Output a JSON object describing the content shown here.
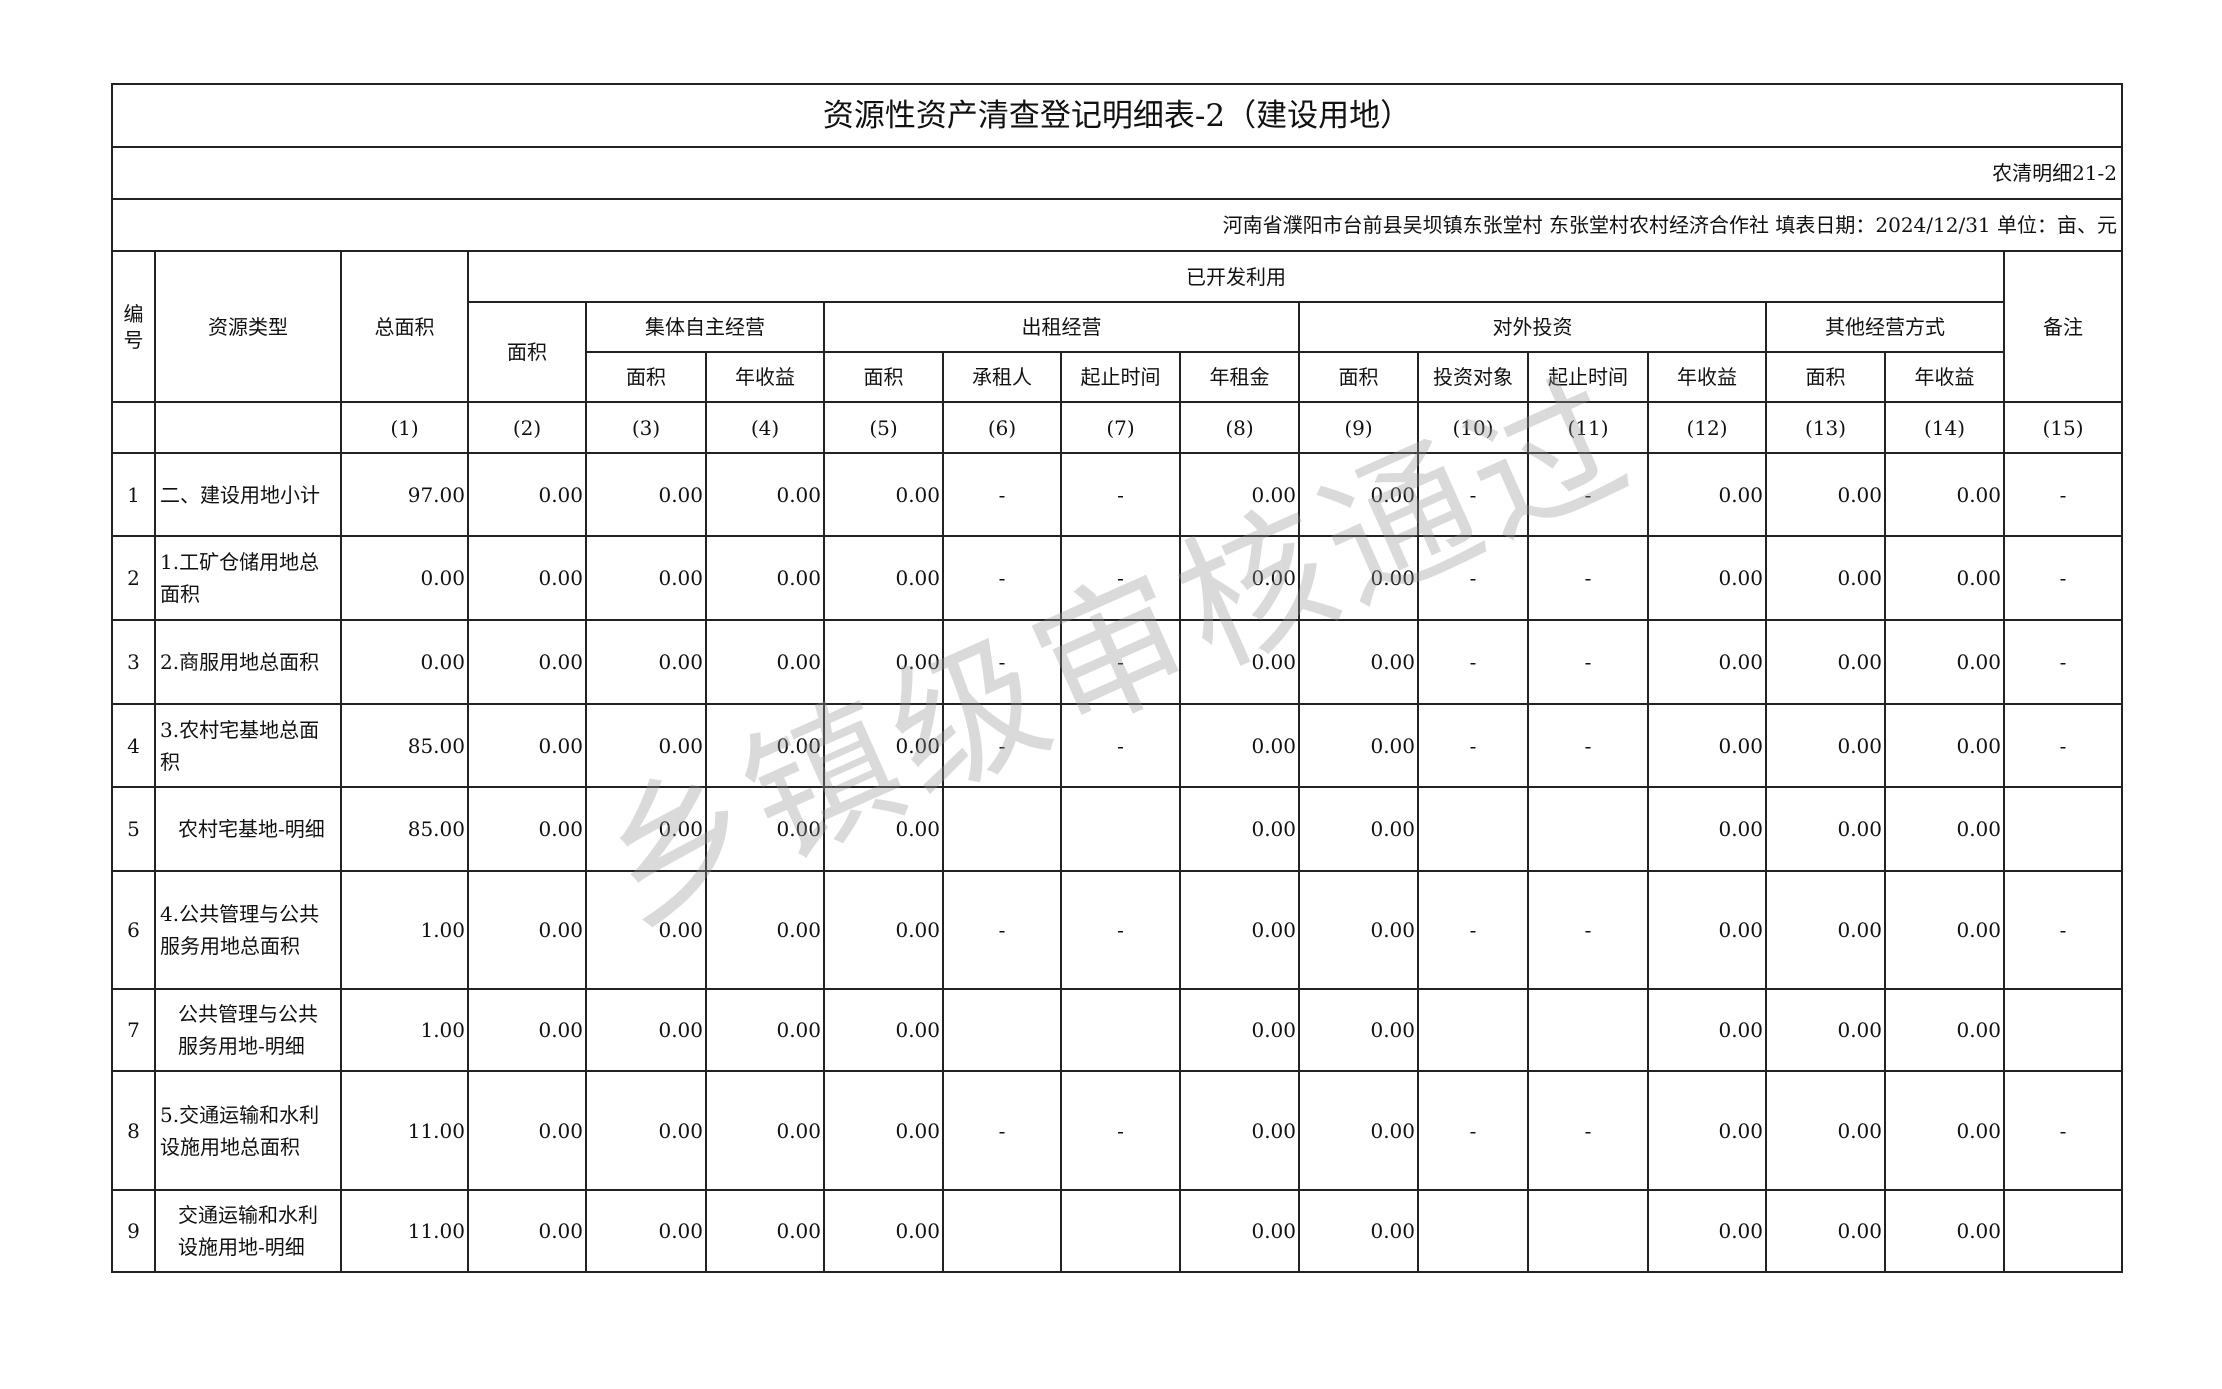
{
  "title": "资源性资产清查登记明细表-2（建设用地）",
  "form_code": "农清明细21-2",
  "info_line": "河南省濮阳市台前县吴坝镇东张堂村  东张堂村农村经济合作社  填表日期：2024/12/31  单位：亩、元",
  "watermark": "乡镇级审核通过",
  "header": {
    "no": "编号",
    "type": "资源类型",
    "total_area": "总面积",
    "developed": "已开发利用",
    "area": "面积",
    "collective": "集体自主经营",
    "rental": "出租经营",
    "investment": "对外投资",
    "other": "其他经营方式",
    "remark": "备注",
    "c_area": "面积",
    "c_income": "年收益",
    "r_area": "面积",
    "r_tenant": "承租人",
    "r_period": "起止时间",
    "r_rent": "年租金",
    "i_area": "面积",
    "i_target": "投资对象",
    "i_period": "起止时间",
    "i_income": "年收益",
    "o_area": "面积",
    "o_income": "年收益"
  },
  "col_numbers": [
    "(1)",
    "(2)",
    "(3)",
    "(4)",
    "(5)",
    "(6)",
    "(7)",
    "(8)",
    "(9)",
    "(10)",
    "(11)",
    "(12)",
    "(13)",
    "(14)",
    "(15)"
  ],
  "rows": [
    {
      "no": "1",
      "type": "二、建设用地小计",
      "indent": false,
      "cells": [
        "97.00",
        "0.00",
        "0.00",
        "0.00",
        "0.00",
        "-",
        "-",
        "0.00",
        "0.00",
        "-",
        "-",
        "0.00",
        "0.00",
        "0.00",
        "-"
      ]
    },
    {
      "no": "2",
      "type": "1.工矿仓储用地总面积",
      "indent": false,
      "cells": [
        "0.00",
        "0.00",
        "0.00",
        "0.00",
        "0.00",
        "-",
        "-",
        "0.00",
        "0.00",
        "-",
        "-",
        "0.00",
        "0.00",
        "0.00",
        "-"
      ]
    },
    {
      "no": "3",
      "type": "2.商服用地总面积",
      "indent": false,
      "cells": [
        "0.00",
        "0.00",
        "0.00",
        "0.00",
        "0.00",
        "-",
        "-",
        "0.00",
        "0.00",
        "-",
        "-",
        "0.00",
        "0.00",
        "0.00",
        "-"
      ]
    },
    {
      "no": "4",
      "type": "3.农村宅基地总面积",
      "indent": false,
      "cells": [
        "85.00",
        "0.00",
        "0.00",
        "0.00",
        "0.00",
        "-",
        "-",
        "0.00",
        "0.00",
        "-",
        "-",
        "0.00",
        "0.00",
        "0.00",
        "-"
      ]
    },
    {
      "no": "5",
      "type": "农村宅基地-明细",
      "indent": true,
      "cells": [
        "85.00",
        "0.00",
        "0.00",
        "0.00",
        "0.00",
        "",
        "",
        "0.00",
        "0.00",
        "",
        "",
        "0.00",
        "0.00",
        "0.00",
        ""
      ]
    },
    {
      "no": "6",
      "type": "4.公共管理与公共服务用地总面积",
      "indent": false,
      "cells": [
        "1.00",
        "0.00",
        "0.00",
        "0.00",
        "0.00",
        "-",
        "-",
        "0.00",
        "0.00",
        "-",
        "-",
        "0.00",
        "0.00",
        "0.00",
        "-"
      ]
    },
    {
      "no": "7",
      "type": "公共管理与公共服务用地-明细",
      "indent": true,
      "cells": [
        "1.00",
        "0.00",
        "0.00",
        "0.00",
        "0.00",
        "",
        "",
        "0.00",
        "0.00",
        "",
        "",
        "0.00",
        "0.00",
        "0.00",
        ""
      ]
    },
    {
      "no": "8",
      "type": "5.交通运输和水利设施用地总面积",
      "indent": false,
      "cells": [
        "11.00",
        "0.00",
        "0.00",
        "0.00",
        "0.00",
        "-",
        "-",
        "0.00",
        "0.00",
        "-",
        "-",
        "0.00",
        "0.00",
        "0.00",
        "-"
      ]
    },
    {
      "no": "9",
      "type": "交通运输和水利设施用地-明细",
      "indent": true,
      "cells": [
        "11.00",
        "0.00",
        "0.00",
        "0.00",
        "0.00",
        "",
        "",
        "0.00",
        "0.00",
        "",
        "",
        "0.00",
        "0.00",
        "0.00",
        ""
      ]
    }
  ]
}
